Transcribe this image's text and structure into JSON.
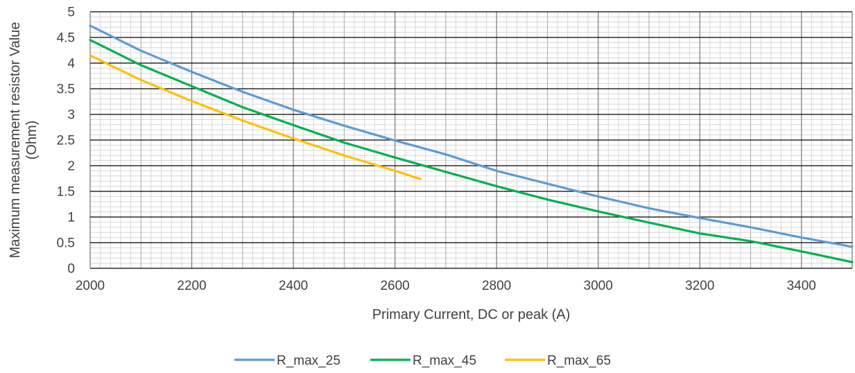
{
  "chart_data": {
    "type": "line",
    "title": "",
    "xlabel": "Primary Current, DC or peak (A)",
    "ylabel_lines": [
      "Maximum measurement resistor Value",
      "(Ohm)"
    ],
    "xlim": [
      2000,
      3500
    ],
    "ylim": [
      0,
      5
    ],
    "x_major_ticks": [
      2000,
      2200,
      2400,
      2600,
      2800,
      3000,
      3200,
      3400
    ],
    "x_minor_step": 20,
    "y_major_ticks": [
      0,
      0.5,
      1,
      1.5,
      2,
      2.5,
      3,
      3.5,
      4,
      4.5,
      5
    ],
    "y_tick_labels": [
      "0",
      "0.5",
      "1",
      "1.5",
      "2",
      "2.5",
      "3",
      "3.5",
      "4",
      "4.5",
      "5"
    ],
    "y_minor_step": 0.1,
    "grid": true,
    "legend_position": "bottom",
    "series": [
      {
        "name": "R_max_25",
        "color": "#5B9BD5",
        "x": [
          2000,
          2100,
          2200,
          2300,
          2400,
          2500,
          2600,
          2700,
          2800,
          2900,
          3000,
          3100,
          3200,
          3300,
          3400,
          3500
        ],
        "y": [
          4.73,
          4.24,
          3.83,
          3.44,
          3.09,
          2.78,
          2.49,
          2.22,
          1.9,
          1.65,
          1.4,
          1.17,
          0.98,
          0.8,
          0.6,
          0.42
        ]
      },
      {
        "name": "R_max_45",
        "color": "#00B050",
        "x": [
          2000,
          2100,
          2200,
          2300,
          2400,
          2500,
          2600,
          2700,
          2800,
          2900,
          3000,
          3100,
          3200,
          3300,
          3400,
          3500
        ],
        "y": [
          4.45,
          3.96,
          3.55,
          3.14,
          2.79,
          2.45,
          2.16,
          1.88,
          1.6,
          1.34,
          1.11,
          0.89,
          0.68,
          0.53,
          0.33,
          0.12
        ]
      },
      {
        "name": "R_max_65",
        "color": "#FFC000",
        "x": [
          2000,
          2100,
          2200,
          2300,
          2400,
          2500,
          2600,
          2650
        ],
        "y": [
          4.15,
          3.67,
          3.26,
          2.88,
          2.53,
          2.2,
          1.9,
          1.74
        ]
      }
    ]
  }
}
